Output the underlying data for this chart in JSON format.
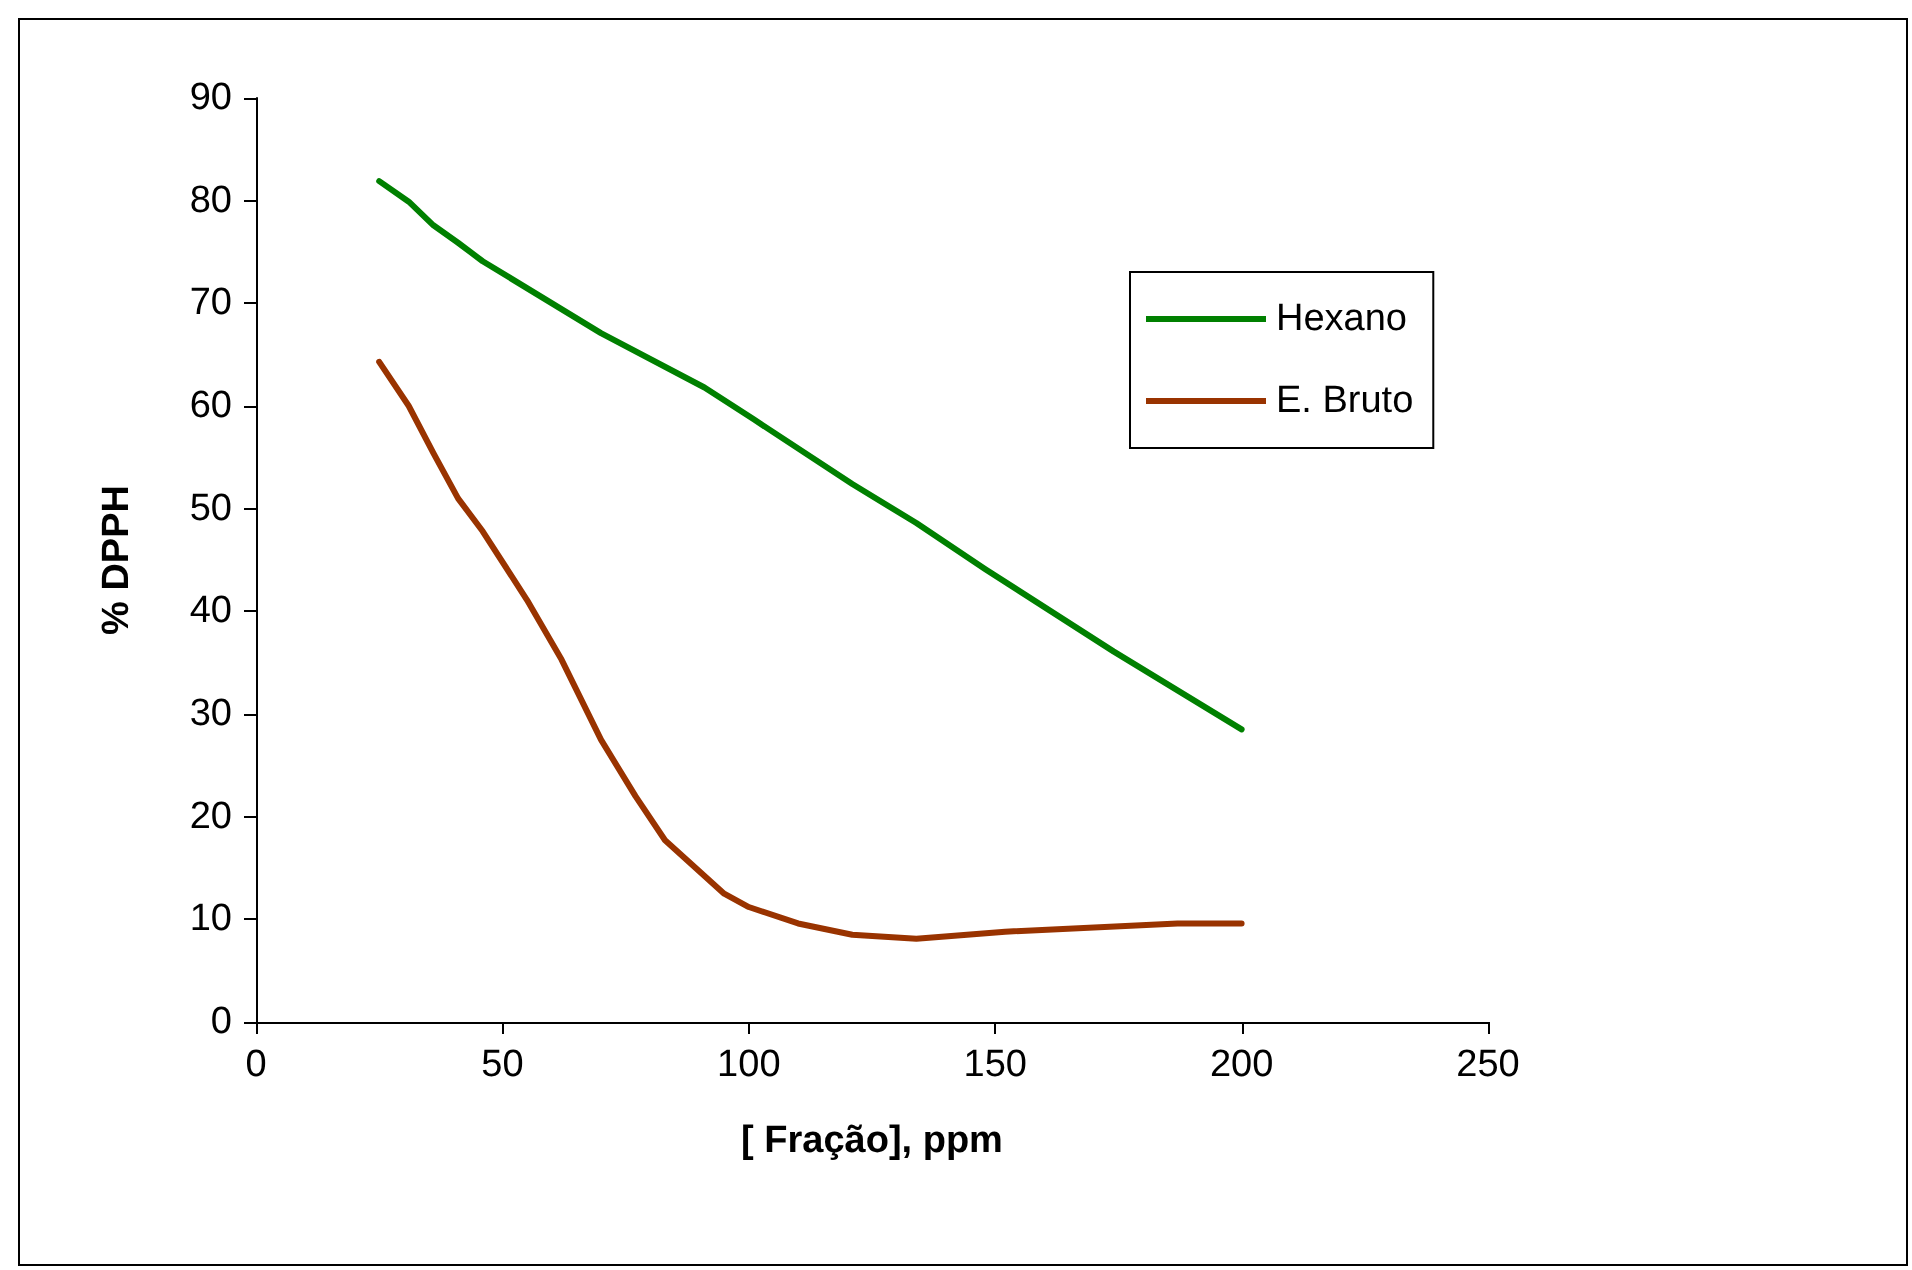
{
  "chart_data": {
    "type": "line",
    "xlabel": "[ Fração], ppm",
    "ylabel": "% DPPH",
    "xlim": [
      0,
      250
    ],
    "xticks": [
      0,
      50,
      100,
      150,
      200,
      250
    ],
    "ylim": [
      0,
      90
    ],
    "yticks": [
      0,
      10,
      20,
      30,
      40,
      50,
      60,
      70,
      80,
      90
    ],
    "grid": false,
    "legend": "right",
    "marker": "none",
    "line_style": "solid",
    "series": [
      {
        "name": "Hexano",
        "color": "#008000",
        "x": [
          25,
          31,
          36,
          41,
          46,
          70,
          91,
          101,
          121,
          134,
          148,
          174,
          200
        ],
        "values": [
          81.9,
          79.9,
          77.6,
          75.9,
          74.1,
          67.1,
          61.8,
          58.7,
          52.4,
          48.6,
          44.1,
          36.1,
          28.5
        ]
      },
      {
        "name": "E. Bruto",
        "color": "#993300",
        "x": [
          25,
          31,
          36,
          41,
          46,
          55,
          62,
          70,
          77,
          83,
          95,
          100,
          110,
          121,
          134,
          152,
          187,
          200
        ],
        "values": [
          64.3,
          60,
          55.4,
          51,
          47.8,
          41.1,
          35.3,
          27.5,
          22,
          17.7,
          12.5,
          11.2,
          9.6,
          8.5,
          8.1,
          8.8,
          9.6,
          9.6
        ]
      }
    ]
  }
}
